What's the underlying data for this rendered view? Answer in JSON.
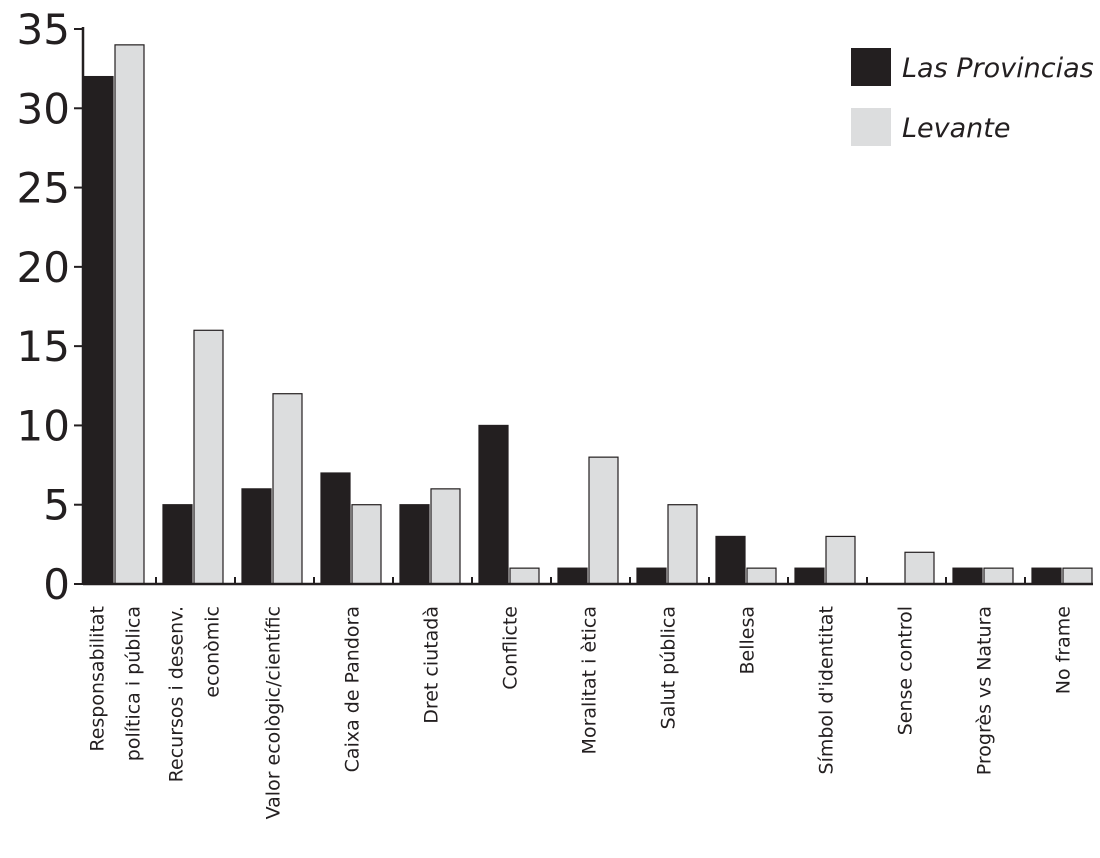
{
  "chart_data": {
    "type": "bar",
    "categories": [
      [
        "Responsabilitat",
        "política i pública"
      ],
      [
        "Recursos i desenv.",
        "econòmic"
      ],
      [
        "Valor ecològic/científic"
      ],
      [
        "Caixa de Pandora"
      ],
      [
        "Dret ciutadà"
      ],
      [
        "Conflicte"
      ],
      [
        "Moralitat i ètica"
      ],
      [
        "Salut pública"
      ],
      [
        "Bellesa"
      ],
      [
        "Símbol d'identitat"
      ],
      [
        "Sense control"
      ],
      [
        "Progrès vs Natura"
      ],
      [
        "No frame"
      ]
    ],
    "series": [
      {
        "name": "Las Provincias",
        "color": "#231f20",
        "values": [
          32,
          5,
          6,
          7,
          5,
          10,
          1,
          1,
          3,
          1,
          0,
          1,
          1
        ]
      },
      {
        "name": "Levante",
        "color": "#dcddde",
        "values": [
          34,
          16,
          12,
          5,
          6,
          1,
          8,
          5,
          1,
          3,
          2,
          1,
          1
        ]
      }
    ],
    "yticks": [
      "0",
      "5",
      "10",
      "15",
      "20",
      "25",
      "30",
      "35"
    ],
    "ylim": [
      0,
      35
    ],
    "xlabel": "",
    "ylabel": "",
    "grid": false,
    "legend_position": "top-right"
  }
}
